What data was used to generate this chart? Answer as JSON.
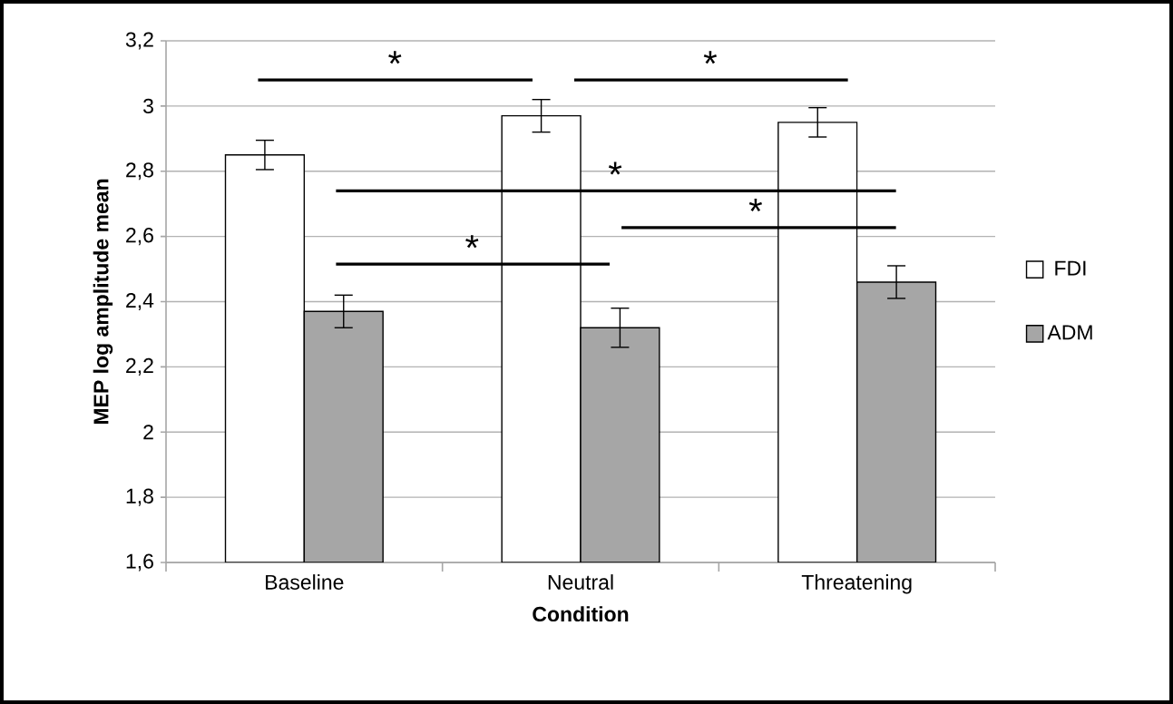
{
  "chart_data": {
    "type": "bar",
    "xlabel": "Condition",
    "ylabel": "MEP log amplitude mean",
    "categories": [
      "Baseline",
      "Neutral",
      "Threatening"
    ],
    "series": [
      {
        "name": "FDI",
        "color": "#ffffff",
        "values": [
          2.85,
          2.97,
          2.95
        ],
        "errors": [
          0.045,
          0.05,
          0.045
        ]
      },
      {
        "name": "ADM",
        "color": "#a6a6a6",
        "values": [
          2.37,
          2.32,
          2.46
        ],
        "errors": [
          0.05,
          0.06,
          0.05
        ]
      }
    ],
    "ylim": [
      1.6,
      3.2
    ],
    "yticks": [
      {
        "value": 1.6,
        "label": "1,6"
      },
      {
        "value": 1.8,
        "label": "1,8"
      },
      2,
      {
        "value": 2.2,
        "label": "2,2"
      },
      {
        "value": 2.4,
        "label": "2,4"
      },
      {
        "value": 2.6,
        "label": "2,6"
      },
      {
        "value": 2.8,
        "label": "2,8"
      },
      3,
      {
        "value": 3.2,
        "label": "3,2"
      }
    ],
    "grid": "y",
    "legend": "right",
    "annotations": [
      "*",
      "*",
      "*",
      "*",
      "*"
    ]
  }
}
